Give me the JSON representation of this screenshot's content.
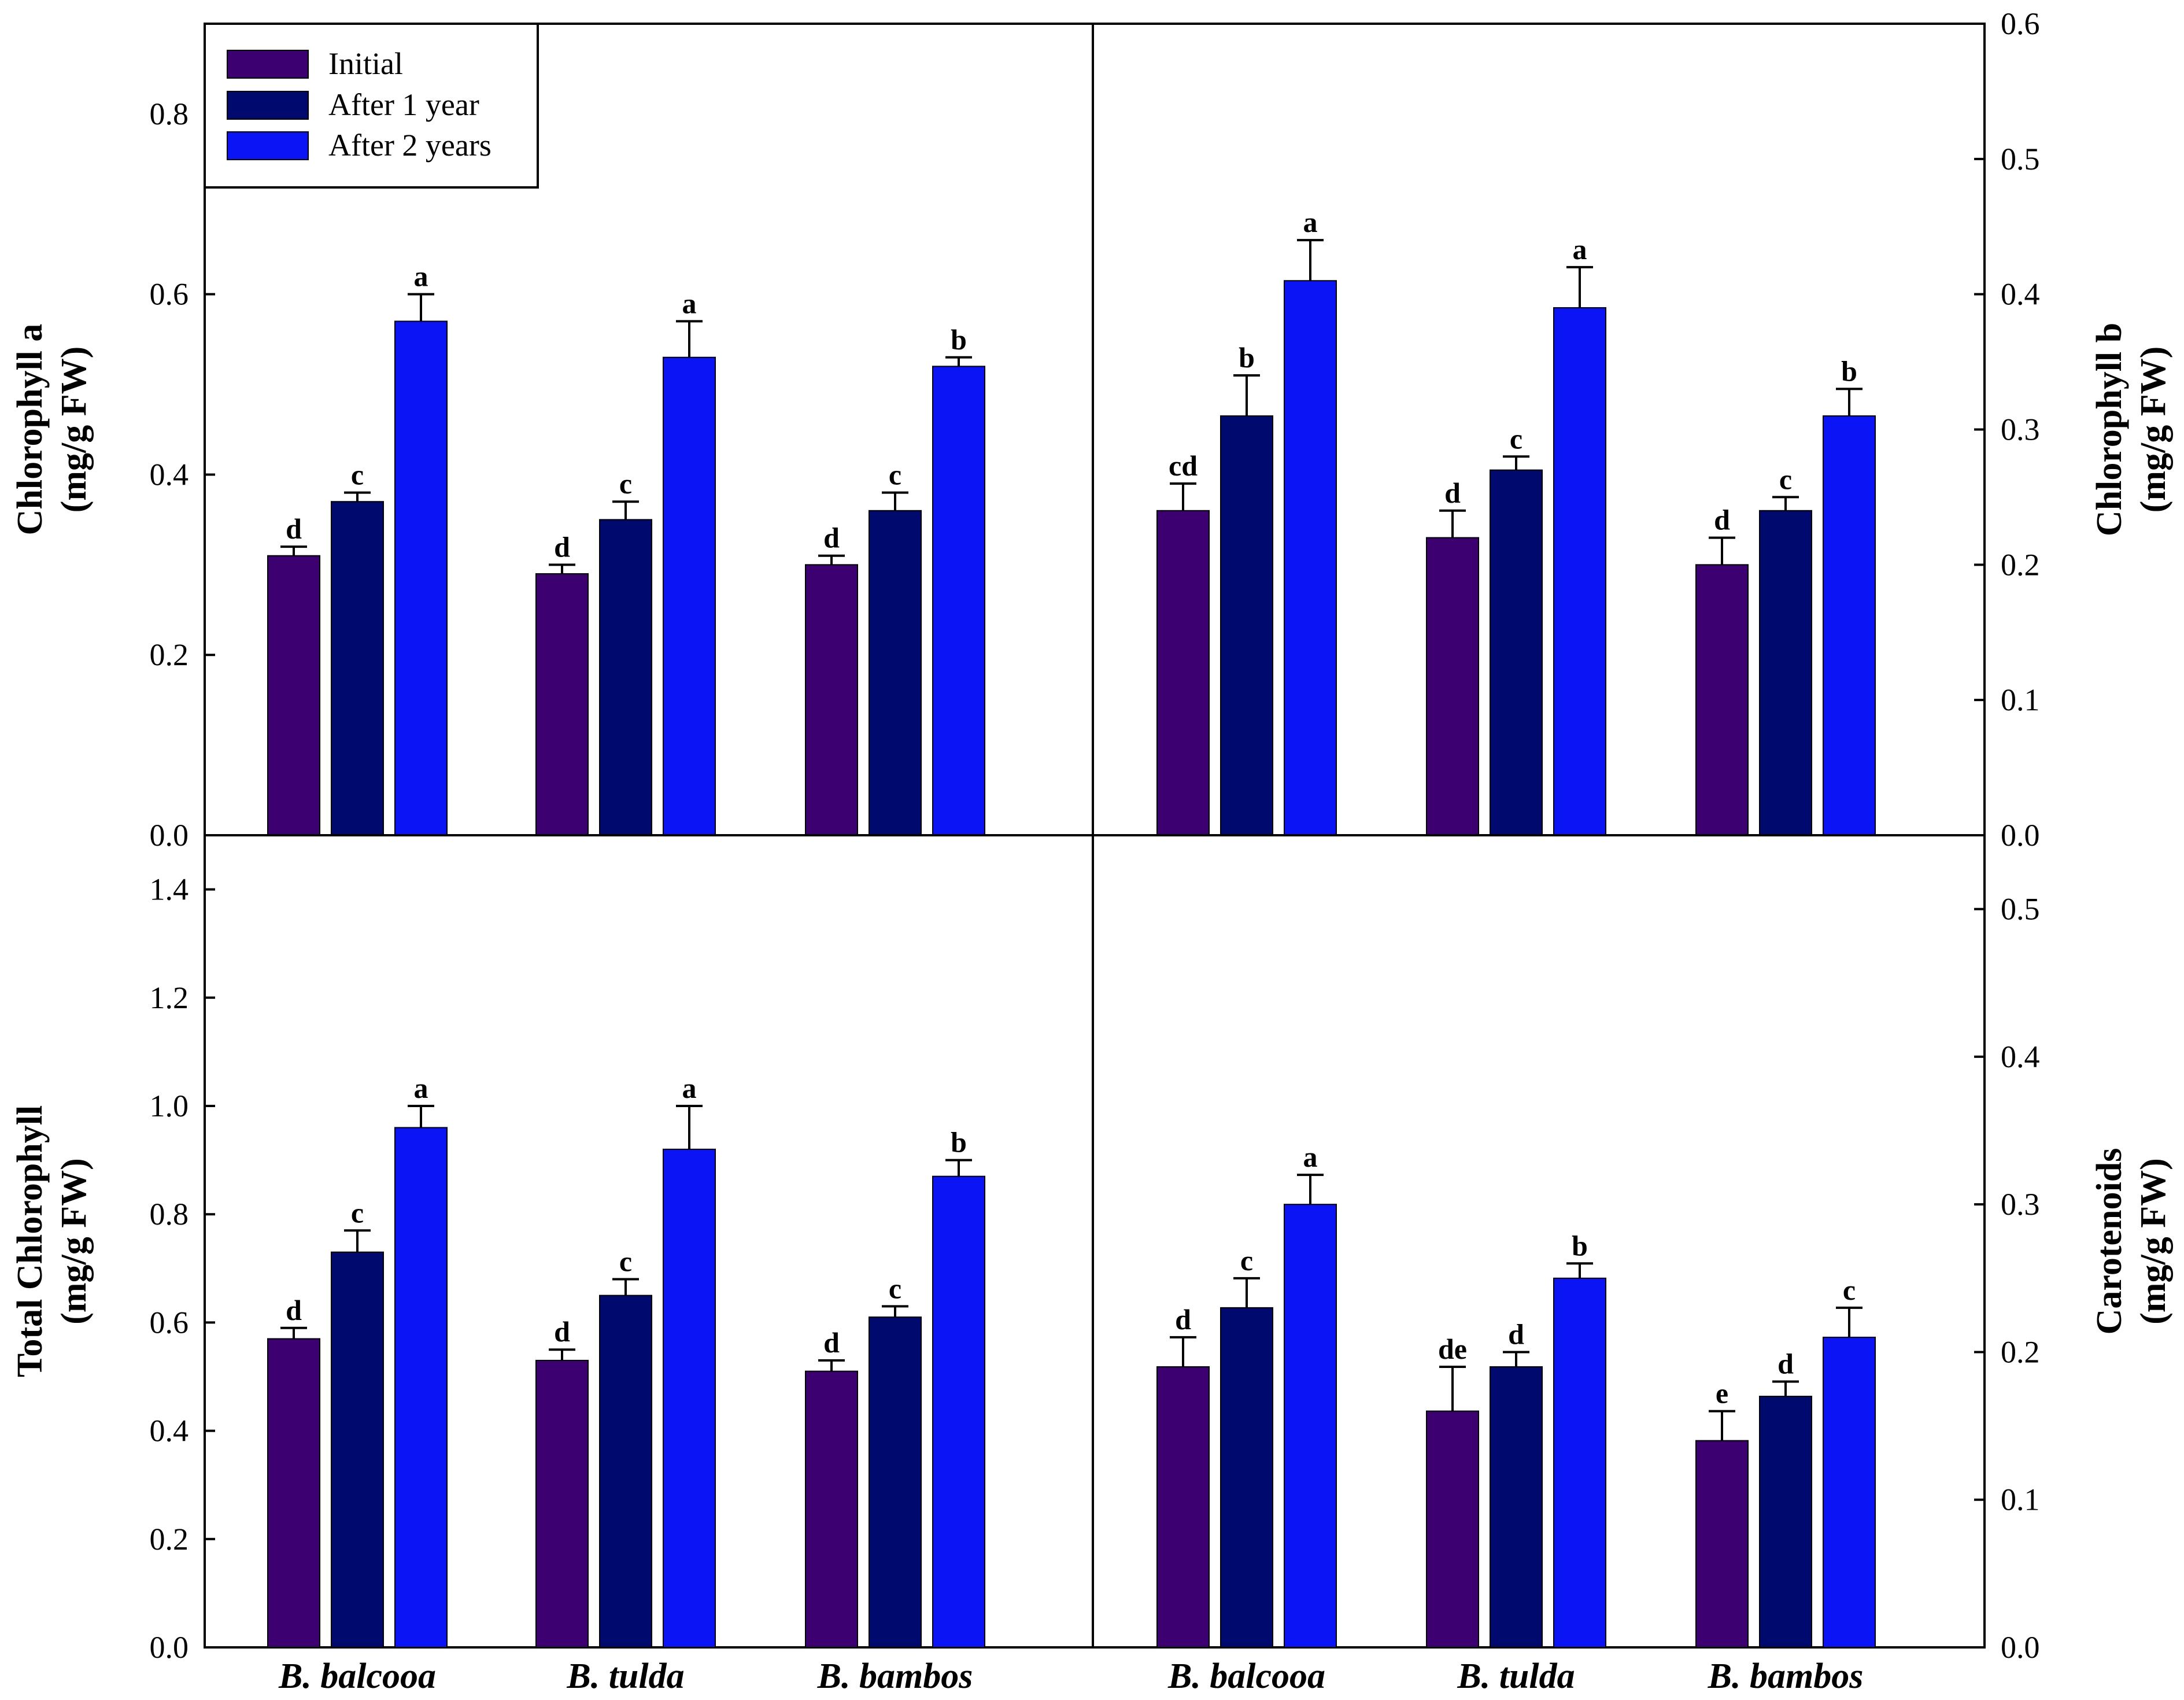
{
  "legend": {
    "entries": [
      {
        "label": "Initial",
        "color": "#3d0070"
      },
      {
        "label": "After 1 year",
        "color": "#000a6e"
      },
      {
        "label": "After 2 years",
        "color": "#0a14f5"
      }
    ]
  },
  "chart_data": [
    {
      "type": "bar",
      "panel": "top-left",
      "ylabel": [
        "Chlorophyll a",
        "(mg/g FW)"
      ],
      "y_axis_side": "left",
      "ylim": [
        0,
        0.9
      ],
      "yticks": [
        0.0,
        0.2,
        0.4,
        0.6,
        0.8
      ],
      "tick_decimals": 1,
      "categories": [
        "B. balcooa",
        "B. tulda",
        "B. bambos"
      ],
      "series": [
        {
          "name": "Initial",
          "values": [
            0.31,
            0.29,
            0.3
          ],
          "errors": [
            0.01,
            0.01,
            0.01
          ],
          "letters": [
            "d",
            "d",
            "d"
          ]
        },
        {
          "name": "After 1 year",
          "values": [
            0.37,
            0.35,
            0.36
          ],
          "errors": [
            0.01,
            0.02,
            0.02
          ],
          "letters": [
            "c",
            "c",
            "c"
          ]
        },
        {
          "name": "After 2 years",
          "values": [
            0.57,
            0.53,
            0.52
          ],
          "errors": [
            0.03,
            0.04,
            0.01
          ],
          "letters": [
            "a",
            "a",
            "b"
          ]
        }
      ]
    },
    {
      "type": "bar",
      "panel": "top-right",
      "ylabel": [
        "Chlorophyll b",
        "(mg/g FW)"
      ],
      "y_axis_side": "right",
      "ylim": [
        0,
        0.6
      ],
      "yticks": [
        0.0,
        0.1,
        0.2,
        0.3,
        0.4,
        0.5,
        0.6
      ],
      "tick_decimals": 1,
      "categories": [
        "B. balcooa",
        "B. tulda",
        "B. bambos"
      ],
      "series": [
        {
          "name": "Initial",
          "values": [
            0.24,
            0.22,
            0.2
          ],
          "errors": [
            0.02,
            0.02,
            0.02
          ],
          "letters": [
            "cd",
            "d",
            "d"
          ]
        },
        {
          "name": "After 1 year",
          "values": [
            0.31,
            0.27,
            0.24
          ],
          "errors": [
            0.03,
            0.01,
            0.01
          ],
          "letters": [
            "b",
            "c",
            "c"
          ]
        },
        {
          "name": "After 2 years",
          "values": [
            0.41,
            0.39,
            0.31
          ],
          "errors": [
            0.03,
            0.03,
            0.02
          ],
          "letters": [
            "a",
            "a",
            "b"
          ]
        }
      ]
    },
    {
      "type": "bar",
      "panel": "bottom-left",
      "ylabel": [
        "Total Chlorophyll",
        "(mg/g FW)"
      ],
      "y_axis_side": "left",
      "ylim": [
        0,
        1.5
      ],
      "yticks": [
        0.0,
        0.2,
        0.4,
        0.6,
        0.8,
        1.0,
        1.2,
        1.4
      ],
      "tick_decimals": 1,
      "xlabel_categories": [
        "B. balcooa",
        "B. tulda",
        "B. bambos"
      ],
      "categories": [
        "B. balcooa",
        "B. tulda",
        "B. bambos"
      ],
      "series": [
        {
          "name": "Initial",
          "values": [
            0.57,
            0.53,
            0.51
          ],
          "errors": [
            0.02,
            0.02,
            0.02
          ],
          "letters": [
            "d",
            "d",
            "d"
          ]
        },
        {
          "name": "After 1 year",
          "values": [
            0.73,
            0.65,
            0.61
          ],
          "errors": [
            0.04,
            0.03,
            0.02
          ],
          "letters": [
            "c",
            "c",
            "c"
          ]
        },
        {
          "name": "After 2 years",
          "values": [
            0.96,
            0.92,
            0.87
          ],
          "errors": [
            0.04,
            0.08,
            0.03
          ],
          "letters": [
            "a",
            "a",
            "b"
          ]
        }
      ]
    },
    {
      "type": "bar",
      "panel": "bottom-right",
      "ylabel": [
        "Carotenoids",
        "(mg/g FW)"
      ],
      "y_axis_side": "right",
      "ylim": [
        0,
        0.55
      ],
      "yticks": [
        0.0,
        0.1,
        0.2,
        0.3,
        0.4,
        0.5
      ],
      "tick_decimals": 1,
      "categories": [
        "B. balcooa",
        "B. tulda",
        "B. bambos"
      ],
      "series": [
        {
          "name": "Initial",
          "values": [
            0.19,
            0.16,
            0.14
          ],
          "errors": [
            0.02,
            0.03,
            0.02
          ],
          "letters": [
            "d",
            "de",
            "e"
          ]
        },
        {
          "name": "After 1 year",
          "values": [
            0.23,
            0.19,
            0.17
          ],
          "errors": [
            0.02,
            0.01,
            0.01
          ],
          "letters": [
            "c",
            "d",
            "d"
          ]
        },
        {
          "name": "After 2 years",
          "values": [
            0.3,
            0.25,
            0.21
          ],
          "errors": [
            0.02,
            0.01,
            0.02
          ],
          "letters": [
            "a",
            "b",
            "c"
          ]
        }
      ]
    }
  ]
}
